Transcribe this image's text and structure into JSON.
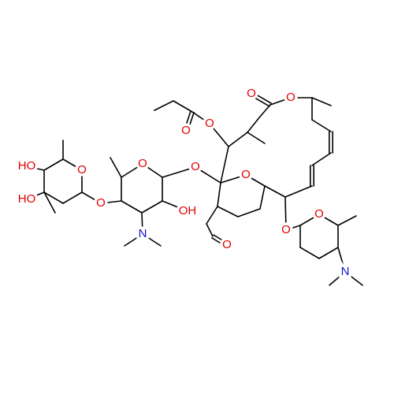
{
  "atoms": [
    {
      "label": "O"
    },
    {
      "label": "O"
    },
    {
      "label": "O"
    },
    {
      "label": "O"
    },
    {
      "label": "O"
    },
    {
      "label": "O"
    },
    {
      "label": "O"
    },
    {
      "label": "HO"
    },
    {
      "label": "O"
    },
    {
      "label": "HO"
    },
    {
      "label": "O"
    },
    {
      "label": "OH"
    },
    {
      "label": "N"
    },
    {
      "label": "O"
    },
    {
      "label": "O"
    },
    {
      "label": "O"
    },
    {
      "label": "N"
    }
  ]
}
